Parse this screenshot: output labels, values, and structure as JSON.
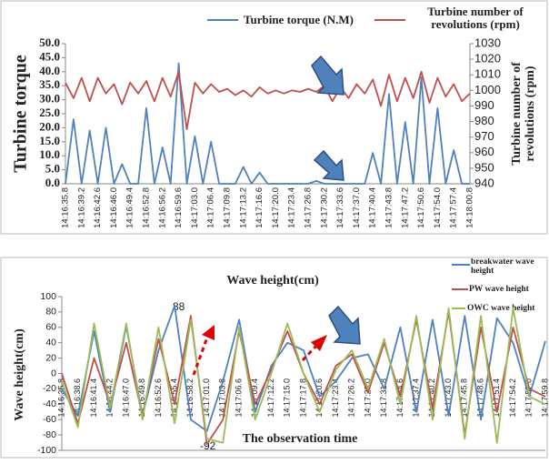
{
  "chart_data": [
    {
      "type": "line",
      "y_label": "Turbine torque",
      "y2_label": "Turbine number of revolutions (rpm)",
      "categories": [
        "14:16:35.8",
        null,
        "14:16:39.2",
        null,
        "14:16:42.6",
        null,
        "14:16:46.0",
        null,
        "14:16:49.4",
        null,
        "14:16:52.8",
        null,
        "14:16:56.2",
        null,
        "14:16:59.6",
        null,
        "14:17:03.0",
        null,
        "14:17:06.4",
        null,
        "14:17:09.8",
        null,
        "14:17:13.2",
        null,
        "14:17:16.6",
        null,
        "14:17:20.0",
        null,
        "14:17:23.4",
        null,
        "14:17:26.8",
        null,
        "14:17:30.2",
        null,
        "14:17:33.6",
        null,
        "14:17:37.0",
        null,
        "14:17:40.4",
        null,
        "14:17:43.8",
        null,
        "14:17:47.2",
        null,
        "14:17:50.6",
        null,
        "14:17:54.0",
        null,
        "14:17:57.4",
        null,
        "14:18:00.8"
      ],
      "series": [
        {
          "name": "Turbine torque (N.M)",
          "color": "#4f81bd",
          "values": [
            0,
            23,
            0,
            19,
            0,
            20,
            0,
            7,
            0,
            0,
            27,
            0,
            13,
            0,
            43,
            0,
            17,
            0,
            15,
            0,
            0,
            0,
            6,
            0,
            4,
            0,
            0,
            0,
            0,
            0,
            0,
            1,
            0,
            0,
            0,
            0,
            0,
            0,
            11,
            0,
            32,
            0,
            22,
            0,
            38,
            0,
            27,
            0,
            12,
            0,
            0
          ]
        },
        {
          "name": "Turbine number of revolutions (rpm)",
          "color": "#c0504d",
          "axis": "y2",
          "values": [
            1005,
            995,
            1008,
            993,
            1008,
            998,
            1004,
            991,
            1005,
            998,
            1006,
            993,
            1008,
            996,
            1012,
            975,
            1005,
            998,
            1004,
            999,
            1001,
            997,
            1000,
            996,
            1002,
            998,
            1000,
            998,
            1000,
            999,
            1001,
            999,
            1003,
            993,
            1002,
            995,
            1004,
            998,
            1007,
            990,
            1010,
            993,
            1008,
            995,
            1012,
            992,
            1008,
            996,
            1004,
            993,
            998
          ]
        }
      ],
      "ylim": [
        0,
        50
      ],
      "yticks": [
        {
          "value": 0,
          "label": "0.0"
        },
        {
          "value": 5,
          "label": "5.0"
        },
        {
          "value": 10,
          "label": "10.0"
        },
        {
          "value": 15,
          "label": "15.0"
        },
        {
          "value": 20,
          "label": "20.0"
        },
        {
          "value": 25,
          "label": "25.0"
        },
        {
          "value": 30,
          "label": "30.0"
        },
        {
          "value": 35,
          "label": "35.0"
        },
        {
          "value": 40,
          "label": "40.0"
        },
        {
          "value": 45,
          "label": "45.0"
        },
        {
          "value": 50,
          "label": "50.0"
        }
      ],
      "y2lim": [
        940,
        1030
      ],
      "y2ticks": [
        940,
        950,
        960,
        970,
        980,
        990,
        1000,
        1010,
        1020,
        1030
      ],
      "grid": false,
      "legend": "top"
    },
    {
      "type": "line",
      "title": "Wave height(cm)",
      "x_label": "The observation time",
      "y_label": "Wave height(cm)",
      "annotations": [
        "88",
        "-92"
      ],
      "categories": [
        "14:16:35.8",
        "14:16:38.6",
        "14:16:41.4",
        "14:16:44.2",
        "14:16:47.0",
        "14:16:49.8",
        "14:16:52.6",
        "14:16:55.4",
        "14:16:58.2",
        "14:17:01.0",
        "14:17:03.8",
        "14:17:06.6",
        "14:17:09.4",
        "14:17:12.2",
        "14:17:15.0",
        "14:17:17.8",
        "14:17:20.6",
        "14:17:23.4",
        "14:17:26.2",
        "14:17:29.0",
        "14:17:31.8",
        "14:17:34.6",
        "14:17:37.4",
        "14:17:40.2",
        "14:17:43.0",
        "14:17:45.8",
        "14:17:48.6",
        "14:17:51.4",
        "14:17:54.2",
        "14:17:57.0",
        "14:17:59.8"
      ],
      "series": [
        {
          "name": "breakwater wave height",
          "color": "#4f81bd",
          "values": [
            -20,
            -55,
            55,
            -50,
            62,
            -55,
            30,
            88,
            -60,
            -75,
            -10,
            70,
            -50,
            10,
            40,
            30,
            -30,
            -10,
            20,
            25,
            -20,
            60,
            -50,
            70,
            -55,
            75,
            -60,
            72,
            40,
            -30,
            42
          ]
        },
        {
          "name": "PW wave height",
          "color": "#c0504d",
          "values": [
            0,
            -65,
            20,
            -40,
            40,
            -55,
            45,
            -40,
            75,
            -92,
            -60,
            55,
            -40,
            5,
            55,
            0,
            -40,
            10,
            25,
            -25,
            40,
            -30,
            70,
            -45,
            80,
            -80,
            60,
            -50,
            60,
            -20,
            -30
          ]
        },
        {
          "name": "OWC wave height",
          "color": "#9bbb59",
          "values": [
            -10,
            -70,
            65,
            -45,
            65,
            -60,
            60,
            -65,
            70,
            -85,
            -90,
            60,
            -60,
            0,
            65,
            0,
            -50,
            5,
            30,
            -20,
            45,
            -40,
            75,
            -60,
            85,
            -85,
            75,
            -90,
            85,
            -30,
            -40
          ]
        }
      ],
      "ylim": [
        -100,
        100
      ],
      "yticks": [
        -100,
        -80,
        -60,
        -40,
        -20,
        0,
        20,
        40,
        60,
        80,
        100
      ],
      "grid": false,
      "legend": "top-right"
    }
  ]
}
